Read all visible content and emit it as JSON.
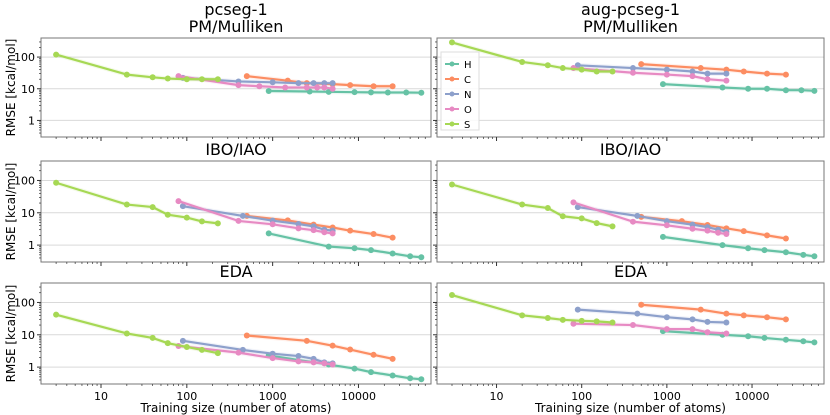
{
  "figure": {
    "ylabel": "RMSE [kcal/mol]",
    "xlabel": "Training size (number of atoms)",
    "legend": [
      "H",
      "C",
      "N",
      "O",
      "S"
    ],
    "colors": {
      "H": "#66c2a5",
      "C": "#fc8d62",
      "N": "#8da0cb",
      "O": "#e78ac3",
      "S": "#a6d854"
    },
    "xscale": "log",
    "yscale": "log",
    "legend_placement": "left, inside first-row right panel"
  },
  "chart_data": [
    {
      "type": "line",
      "title": "pcseg-1\nPM/Mulliken",
      "xlabel": "",
      "ylabel": "RMSE [kcal/mol]",
      "xlim": [
        2,
        70000
      ],
      "ylim": [
        0.3,
        400
      ],
      "xticks": [],
      "yticks": [
        "1",
        "10",
        "100"
      ],
      "series": [
        {
          "name": "H",
          "x": [
            900,
            2700,
            4500,
            9000,
            14000,
            22000,
            36000,
            54000
          ],
          "y": [
            8.5,
            8.2,
            8.0,
            7.8,
            7.7,
            7.6,
            7.6,
            7.5
          ]
        },
        {
          "name": "C",
          "x": [
            500,
            1500,
            2500,
            5000,
            8000,
            15000,
            25000
          ],
          "y": [
            25,
            18,
            15,
            14,
            13,
            12,
            12
          ]
        },
        {
          "name": "N",
          "x": [
            90,
            400,
            1000,
            2000,
            3000,
            4000,
            5000
          ],
          "y": [
            22,
            17,
            16,
            15,
            15,
            15,
            15
          ]
        },
        {
          "name": "O",
          "x": [
            80,
            400,
            700,
            1400,
            2500,
            3300,
            4000,
            5000
          ],
          "y": [
            25,
            13,
            12,
            11,
            11,
            11,
            11,
            10
          ]
        },
        {
          "name": "S",
          "x": [
            3,
            20,
            40,
            60,
            100,
            150,
            230
          ],
          "y": [
            120,
            28,
            23,
            21,
            20,
            20,
            20
          ]
        }
      ]
    },
    {
      "type": "line",
      "title": "aug-pcseg-1\nPM/Mulliken",
      "xlabel": "",
      "ylabel": "",
      "xlim": [
        2,
        70000
      ],
      "ylim": [
        0.3,
        400
      ],
      "xticks": [],
      "yticks": [],
      "series": [
        {
          "name": "H",
          "x": [
            900,
            4500,
            9000,
            15000,
            25000,
            38000,
            54000
          ],
          "y": [
            14,
            11,
            10,
            10,
            9,
            9,
            8.6
          ]
        },
        {
          "name": "C",
          "x": [
            500,
            2500,
            5000,
            8000,
            15000,
            25000
          ],
          "y": [
            60,
            45,
            40,
            35,
            30,
            28
          ]
        },
        {
          "name": "N",
          "x": [
            90,
            400,
            1000,
            2000,
            3000,
            5000
          ],
          "y": [
            55,
            45,
            40,
            35,
            30,
            30
          ]
        },
        {
          "name": "O",
          "x": [
            80,
            400,
            1000,
            2000,
            3000,
            5000
          ],
          "y": [
            45,
            32,
            28,
            25,
            20,
            18
          ]
        },
        {
          "name": "S",
          "x": [
            3,
            20,
            40,
            60,
            100,
            150,
            230
          ],
          "y": [
            290,
            70,
            55,
            45,
            40,
            35,
            35
          ]
        }
      ]
    },
    {
      "type": "line",
      "title": "IBO/IAO",
      "xlabel": "",
      "ylabel": "RMSE [kcal/mol]",
      "xlim": [
        2,
        70000
      ],
      "ylim": [
        0.3,
        400
      ],
      "xticks": [],
      "yticks": [
        "1",
        "10",
        "100"
      ],
      "series": [
        {
          "name": "H",
          "x": [
            900,
            4500,
            9000,
            14000,
            25000,
            40000,
            54000
          ],
          "y": [
            2.3,
            0.9,
            0.8,
            0.7,
            0.55,
            0.45,
            0.42
          ]
        },
        {
          "name": "C",
          "x": [
            500,
            1500,
            3000,
            5000,
            8000,
            15000,
            25000
          ],
          "y": [
            8,
            5.8,
            4.3,
            3.5,
            2.8,
            2.2,
            1.7
          ]
        },
        {
          "name": "N",
          "x": [
            90,
            450,
            1000,
            2000,
            3000,
            4000,
            5000
          ],
          "y": [
            16,
            8,
            5.7,
            4.5,
            3.8,
            3.0,
            2.8
          ]
        },
        {
          "name": "O",
          "x": [
            80,
            400,
            1000,
            2000,
            3000,
            4000,
            5000
          ],
          "y": [
            23,
            5.6,
            4.4,
            3.3,
            2.9,
            2.5,
            2.3
          ]
        },
        {
          "name": "S",
          "x": [
            3,
            20,
            40,
            60,
            100,
            150,
            230
          ],
          "y": [
            85,
            18,
            15,
            8.7,
            7.1,
            5.4,
            4.7
          ]
        }
      ]
    },
    {
      "type": "line",
      "title": "IBO/IAO",
      "xlabel": "",
      "ylabel": "",
      "xlim": [
        2,
        70000
      ],
      "ylim": [
        0.3,
        400
      ],
      "xticks": [],
      "yticks": [],
      "series": [
        {
          "name": "H",
          "x": [
            900,
            4500,
            9000,
            14000,
            25000,
            40000,
            54000
          ],
          "y": [
            1.8,
            1.0,
            0.8,
            0.7,
            0.6,
            0.5,
            0.45
          ]
        },
        {
          "name": "C",
          "x": [
            500,
            1500,
            3000,
            5000,
            8000,
            15000,
            25000
          ],
          "y": [
            7.5,
            5.5,
            4.2,
            3.3,
            2.7,
            2.0,
            1.6
          ]
        },
        {
          "name": "N",
          "x": [
            90,
            450,
            1000,
            2000,
            3000,
            4000,
            5000
          ],
          "y": [
            15,
            8,
            5.5,
            4.3,
            3.6,
            3.0,
            2.6
          ]
        },
        {
          "name": "O",
          "x": [
            80,
            400,
            1000,
            2000,
            3000,
            4000,
            5000
          ],
          "y": [
            21,
            5.3,
            4.1,
            3.2,
            2.8,
            2.4,
            2.2
          ]
        },
        {
          "name": "S",
          "x": [
            3,
            20,
            40,
            60,
            100,
            150,
            230
          ],
          "y": [
            75,
            18,
            14,
            7.8,
            6.7,
            4.8,
            3.8
          ]
        }
      ]
    },
    {
      "type": "line",
      "title": "EDA",
      "xlabel": "Training size (number of atoms)",
      "ylabel": "RMSE [kcal/mol]",
      "xlim": [
        2,
        70000
      ],
      "ylim": [
        0.3,
        400
      ],
      "xticks": [
        "10",
        "100",
        "1000",
        "10000"
      ],
      "yticks": [
        "1",
        "10",
        "100"
      ],
      "series": [
        {
          "name": "H",
          "x": [
            900,
            4500,
            9000,
            14000,
            25000,
            40000,
            54000
          ],
          "y": [
            2.3,
            1.2,
            0.9,
            0.7,
            0.55,
            0.45,
            0.42
          ]
        },
        {
          "name": "C",
          "x": [
            500,
            2500,
            5000,
            8000,
            15000,
            25000
          ],
          "y": [
            9.5,
            6.5,
            4.6,
            3.5,
            2.4,
            1.8
          ]
        },
        {
          "name": "N",
          "x": [
            90,
            450,
            1000,
            2000,
            3000,
            4000,
            5000
          ],
          "y": [
            6.5,
            3.4,
            2.6,
            2.2,
            1.8,
            1.4,
            1.3
          ]
        },
        {
          "name": "O",
          "x": [
            80,
            400,
            1000,
            2000,
            3000,
            4000,
            5000
          ],
          "y": [
            4.5,
            2.8,
            1.9,
            1.5,
            1.4,
            1.3,
            1.2
          ]
        },
        {
          "name": "S",
          "x": [
            3,
            20,
            40,
            60,
            100,
            150,
            230
          ],
          "y": [
            42,
            11,
            8,
            5.5,
            4.2,
            3.4,
            2.7
          ]
        }
      ]
    },
    {
      "type": "line",
      "title": "EDA",
      "xlabel": "Training size (number of atoms)",
      "ylabel": "",
      "xlim": [
        2,
        70000
      ],
      "ylim": [
        0.3,
        400
      ],
      "xticks": [
        "10",
        "100",
        "1000",
        "10000"
      ],
      "yticks": [],
      "series": [
        {
          "name": "H",
          "x": [
            900,
            4500,
            9000,
            14000,
            25000,
            40000,
            54000
          ],
          "y": [
            13,
            10,
            9,
            8,
            7,
            6.3,
            5.8
          ]
        },
        {
          "name": "C",
          "x": [
            500,
            2500,
            5000,
            8000,
            15000,
            25000
          ],
          "y": [
            85,
            60,
            45,
            40,
            35,
            30
          ]
        },
        {
          "name": "N",
          "x": [
            90,
            450,
            1000,
            2000,
            3000,
            5000
          ],
          "y": [
            60,
            45,
            35,
            30,
            25,
            24
          ]
        },
        {
          "name": "O",
          "x": [
            80,
            400,
            1000,
            2000,
            3000,
            5000
          ],
          "y": [
            22,
            20,
            15,
            15,
            12,
            11
          ]
        },
        {
          "name": "S",
          "x": [
            3,
            20,
            40,
            60,
            100,
            150,
            230
          ],
          "y": [
            170,
            40,
            33,
            29,
            27,
            26,
            24
          ]
        }
      ]
    }
  ]
}
